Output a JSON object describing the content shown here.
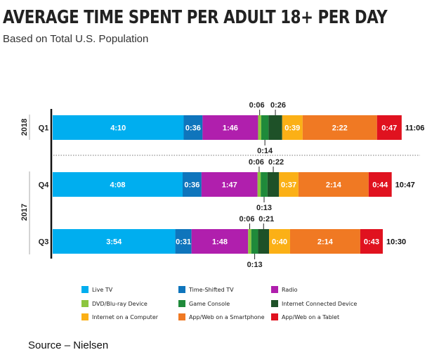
{
  "chart_data": {
    "type": "bar",
    "orientation": "horizontal-stacked",
    "title": "AVERAGE TIME SPENT PER ADULT 18+ PER DAY",
    "subtitle": "Based on Total U.S. Population",
    "units": "hours:minutes",
    "rows": [
      {
        "year": "2018",
        "quarter": "Q1",
        "total": "11:06",
        "values": [
          "4:10",
          "0:36",
          "1:46",
          "0:06",
          "0:14",
          "0:26",
          "0:39",
          "2:22",
          "0:47"
        ]
      },
      {
        "year": "2017",
        "quarter": "Q4",
        "total": "10:47",
        "values": [
          "4:08",
          "0:36",
          "1:47",
          "0:06",
          "0:13",
          "0:22",
          "0:37",
          "2:14",
          "0:44"
        ]
      },
      {
        "year": "2017",
        "quarter": "Q3",
        "total": "10:30",
        "values": [
          "3:54",
          "0:31",
          "1:48",
          "0:06",
          "0:13",
          "0:21",
          "0:40",
          "2:14",
          "0:43"
        ]
      }
    ],
    "series": [
      {
        "name": "Live TV",
        "color": "#00aeef"
      },
      {
        "name": "Time-Shifted TV",
        "color": "#0f75bc"
      },
      {
        "name": "Radio",
        "color": "#b01fad"
      },
      {
        "name": "DVD/Blu-ray Device",
        "color": "#8dc63f"
      },
      {
        "name": "Game Console",
        "color": "#1f8a3a"
      },
      {
        "name": "Internet Connected Device",
        "color": "#1e5128"
      },
      {
        "name": "Internet on a Computer",
        "color": "#fbb016"
      },
      {
        "name": "App/Web on a Smartphone",
        "color": "#f07923"
      },
      {
        "name": "App/Web on a Tablet",
        "color": "#e0121f"
      }
    ],
    "legend_position": "bottom"
  },
  "source": "Source – Nielsen"
}
